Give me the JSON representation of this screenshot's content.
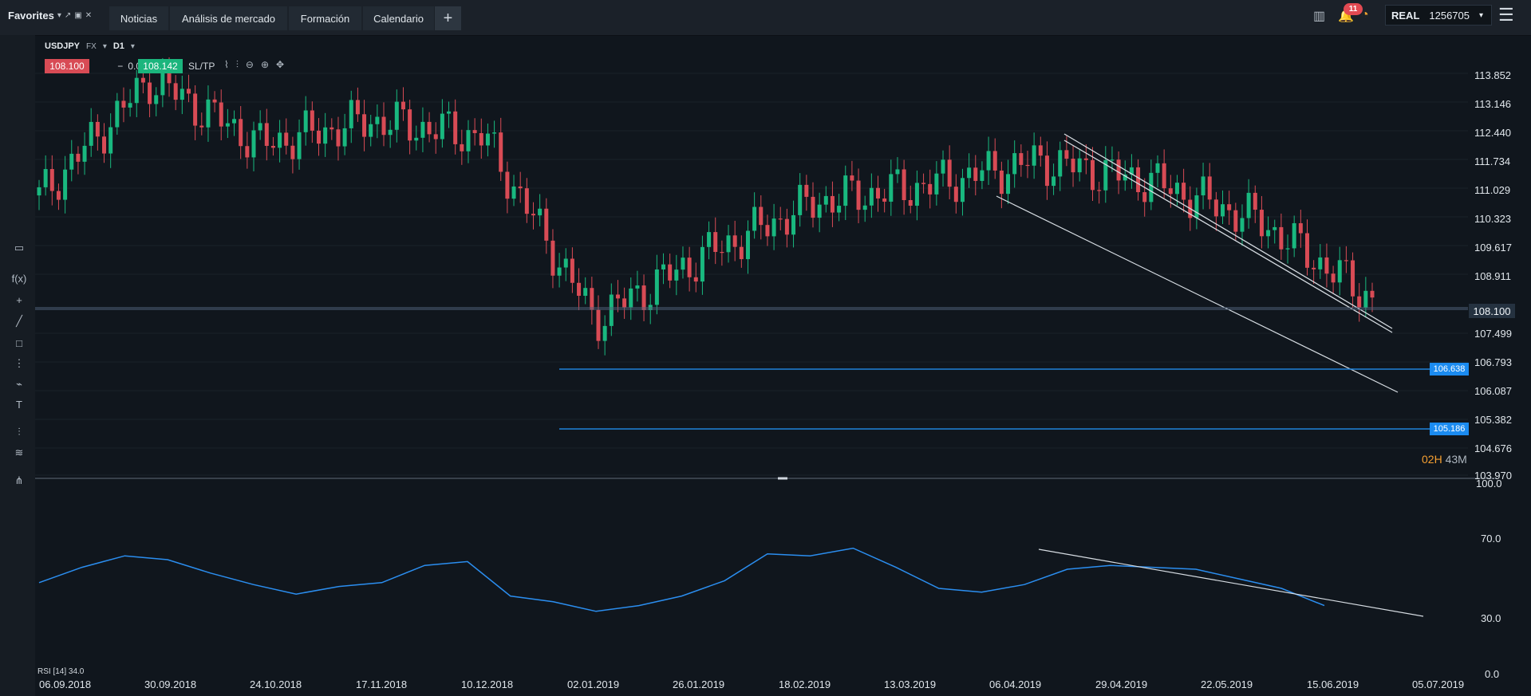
{
  "topbar": {
    "favorites_label": "Favorites",
    "tabs": [
      {
        "label": "Noticias"
      },
      {
        "label": "Análisis de mercado"
      },
      {
        "label": "Formación"
      },
      {
        "label": "Calendario"
      }
    ],
    "notifications_count": "11",
    "account_type": "REAL",
    "account_number": "1256705"
  },
  "instrument": {
    "symbol": "USDJPY",
    "market": "FX",
    "timeframe": "D1",
    "bid": "108.100",
    "spread": "0.02",
    "spread_minus": "−",
    "spread_plus": "+",
    "ask": "108.142",
    "sltp_label": "SL/TP"
  },
  "price_axis": {
    "labels": [
      "113.852",
      "113.146",
      "112.440",
      "111.734",
      "111.029",
      "110.323",
      "109.617",
      "108.911",
      "107.499",
      "106.793",
      "106.087",
      "105.382",
      "104.676",
      "103.970"
    ],
    "current_price": "108.100",
    "levels": [
      "106.638",
      "105.186"
    ]
  },
  "time_axis": {
    "labels": [
      "06.09.2018",
      "30.09.2018",
      "24.10.2018",
      "17.11.2018",
      "10.12.2018",
      "02.01.2019",
      "26.01.2019",
      "18.02.2019",
      "13.03.2019",
      "06.04.2019",
      "29.04.2019",
      "22.05.2019",
      "15.06.2019",
      "05.07.2019"
    ]
  },
  "countdown": {
    "hours": "02H",
    "minutes": "43M"
  },
  "rsi": {
    "label": "RSI [14] 34.0",
    "axis_labels": [
      "100.0",
      "70.0",
      "30.0",
      "0.0"
    ]
  },
  "chart_data": {
    "type": "line",
    "main_series": {
      "name": "USDJPY",
      "kind": "candlestick",
      "points": [
        {
          "date": "06.09.2018",
          "value": 110.8
        },
        {
          "date": "30.09.2018",
          "value": 113.7
        },
        {
          "date": "24.10.2018",
          "value": 112.1
        },
        {
          "date": "17.11.2018",
          "value": 112.7
        },
        {
          "date": "10.12.2018",
          "value": 112.3
        },
        {
          "date": "02.01.2019",
          "value": 107.8
        },
        {
          "date": "26.01.2019",
          "value": 109.4
        },
        {
          "date": "18.02.2019",
          "value": 110.7
        },
        {
          "date": "13.03.2019",
          "value": 111.1
        },
        {
          "date": "06.04.2019",
          "value": 111.7
        },
        {
          "date": "29.04.2019",
          "value": 111.2
        },
        {
          "date": "22.05.2019",
          "value": 110.2
        },
        {
          "date": "15.06.2019",
          "value": 108.3
        }
      ]
    },
    "rsi_series": {
      "name": "RSI",
      "values": [
        48,
        56,
        62,
        60,
        53,
        47,
        42,
        46,
        48,
        57,
        59,
        41,
        38,
        33,
        36,
        41,
        49,
        63,
        62,
        66,
        56,
        45,
        43,
        47,
        55,
        57,
        56,
        55,
        50,
        45,
        36
      ],
      "ylim": [
        0,
        100
      ]
    },
    "ylim": [
      103.97,
      113.852
    ]
  }
}
